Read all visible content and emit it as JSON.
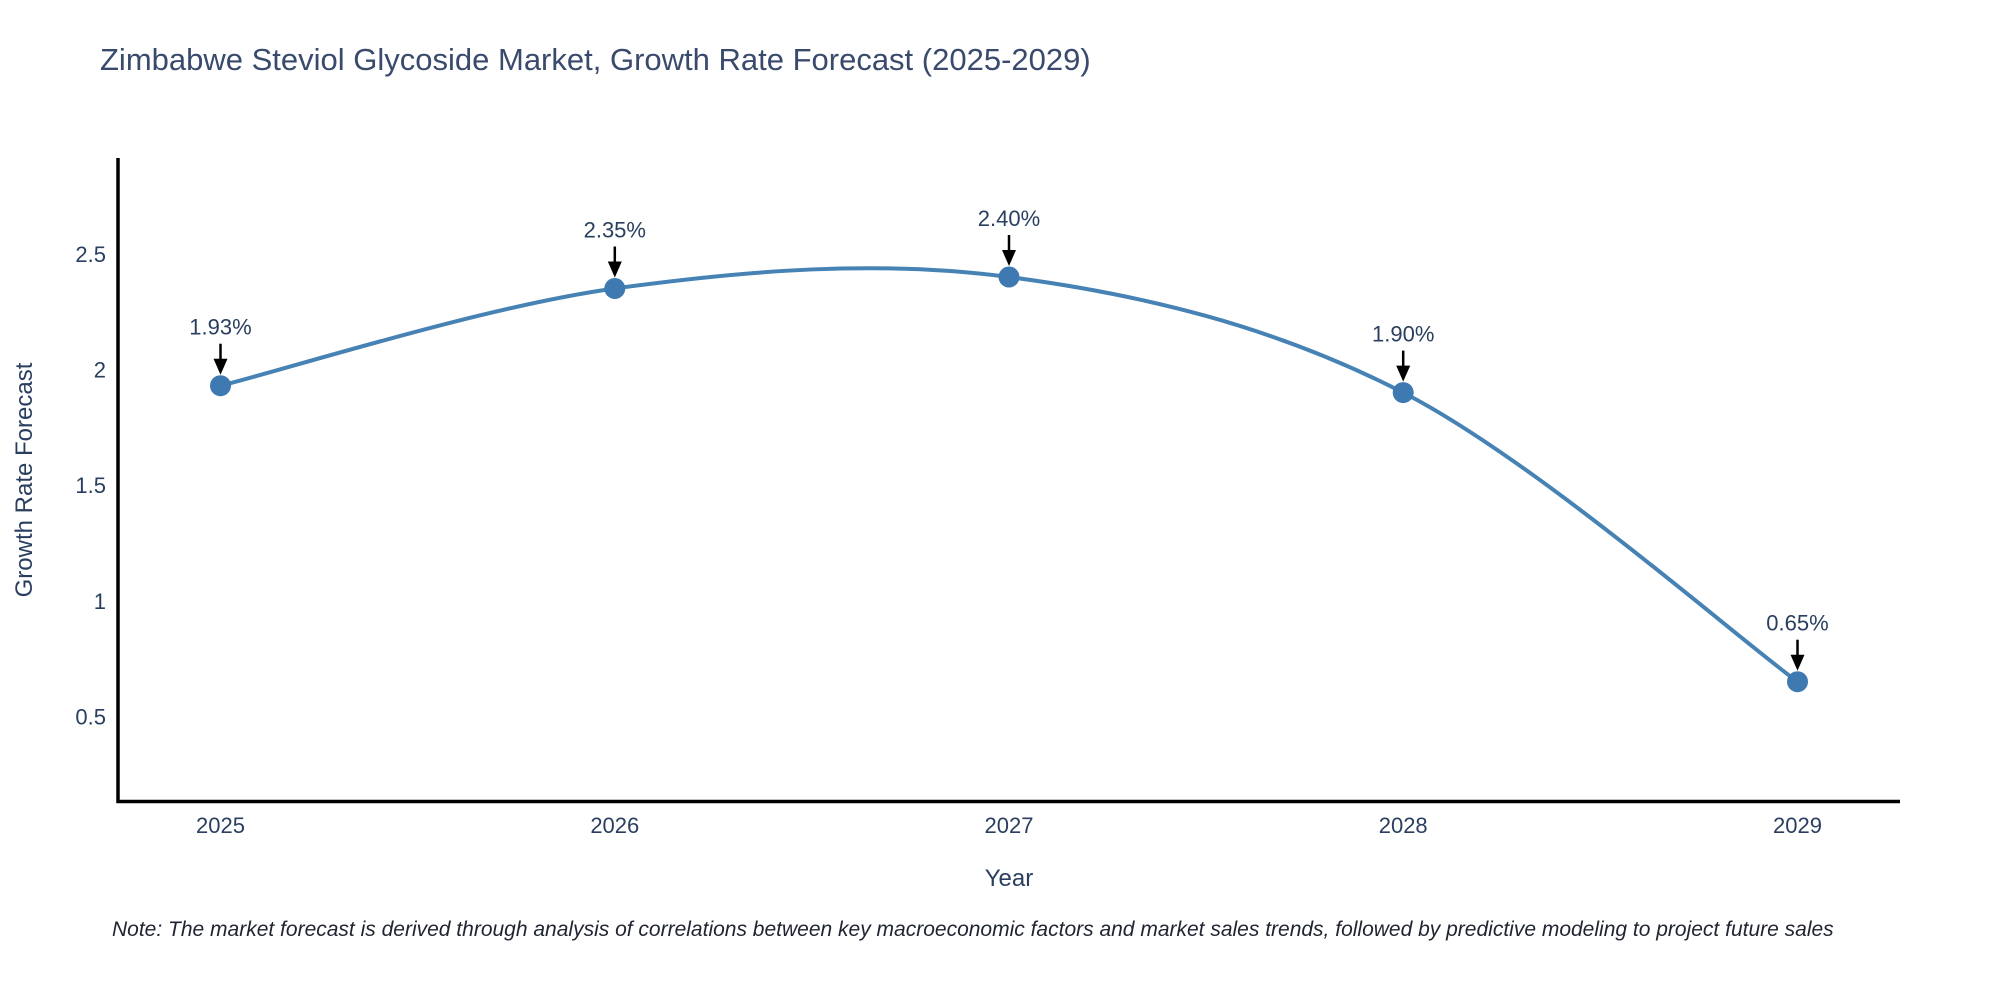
{
  "title": "Zimbabwe Steviol Glycoside Market, Growth Rate Forecast (2025-2029)",
  "note": "Note: The market forecast is derived through analysis of correlations between key macroeconomic factors and market sales trends, followed by predictive modeling to project future sales",
  "chart_data": {
    "type": "line",
    "title": "Zimbabwe Steviol Glycoside Market, Growth Rate Forecast (2025-2029)",
    "x": [
      2025,
      2026,
      2027,
      2028,
      2029
    ],
    "values": [
      1.93,
      2.35,
      2.4,
      1.9,
      0.65
    ],
    "point_labels": [
      "1.93%",
      "2.35%",
      "2.40%",
      "1.90%",
      "0.65%"
    ],
    "xlabel": "Year",
    "ylabel": "Growth Rate Forecast",
    "xticks": [
      "2025",
      "2026",
      "2027",
      "2028",
      "2029"
    ],
    "yticks": [
      0.5,
      1,
      1.5,
      2,
      2.5
    ],
    "xlim": [
      2024.74,
      2029.26
    ],
    "ylim": [
      0.13,
      2.91
    ],
    "grid": false,
    "legend": false,
    "line_shape": "spline",
    "colors": {
      "line": "#4682b4",
      "marker": "#3e79b1",
      "axis": "#000000",
      "tick_text": "#2a3f5f",
      "annotation_text": "#2a3f5f",
      "annotation_arrow": "#000000",
      "title_text": "#3a4a6d",
      "background": "#ffffff"
    }
  }
}
